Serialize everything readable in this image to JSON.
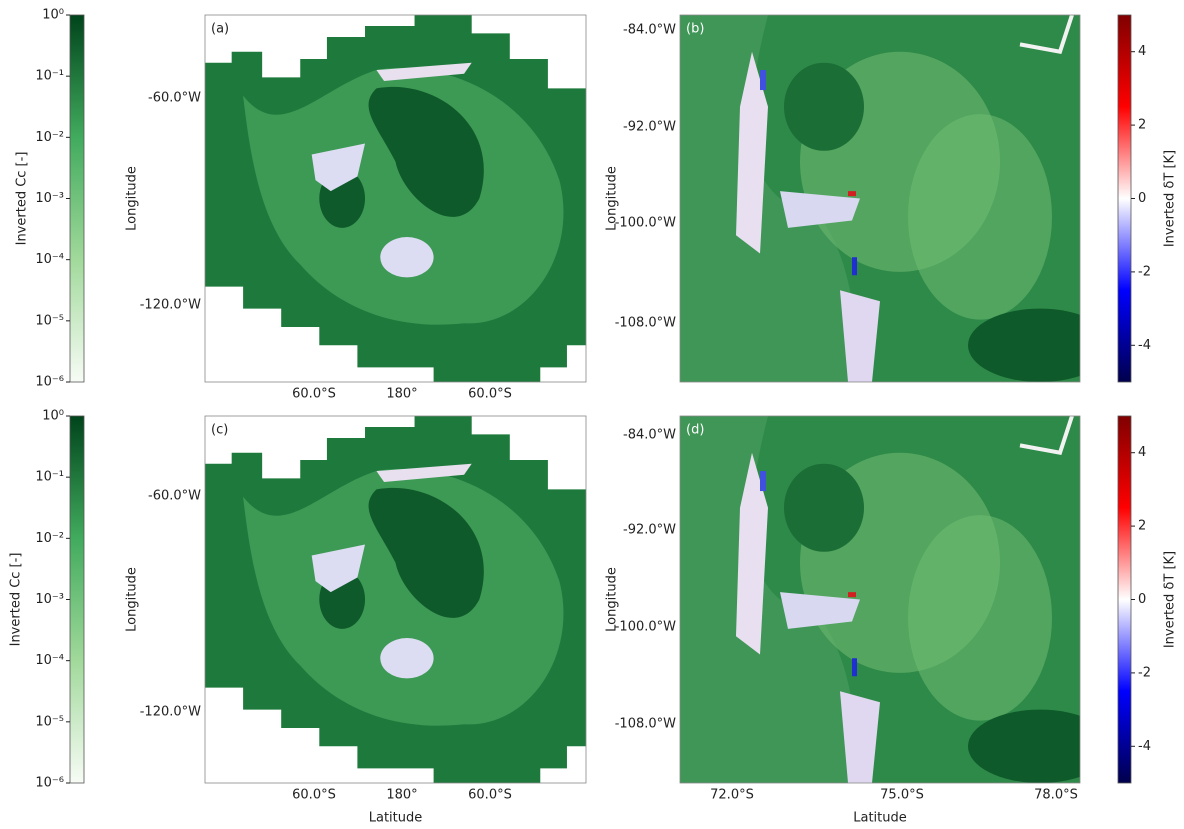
{
  "panels": [
    {
      "label": "(a)",
      "y_axis_label": "Longitude",
      "y_ticks": [
        "-60.0°W",
        "-120.0°W"
      ],
      "x_ticks": [
        "60.0°S",
        "180°",
        "60.0°S"
      ]
    },
    {
      "label": "(b)",
      "y_axis_label": "Longitude",
      "y_ticks": [
        "-84.0°W",
        "-92.0°W",
        "-100.0°W",
        "-108.0°W"
      ]
    },
    {
      "label": "(c)",
      "y_axis_label": "Longitude",
      "y_ticks": [
        "-60.0°W",
        "-120.0°W"
      ],
      "x_ticks": [
        "60.0°S",
        "180°",
        "60.0°S"
      ],
      "x_axis_label": "Latitude"
    },
    {
      "label": "(d)",
      "y_axis_label": "Longitude",
      "y_ticks": [
        "-84.0°W",
        "-92.0°W",
        "-100.0°W",
        "-108.0°W"
      ],
      "x_ticks": [
        "72.0°S",
        "75.0°S",
        "78.0°S"
      ],
      "x_axis_label": "Latitude"
    }
  ],
  "colorbars": [
    {
      "label": "Inverted Cc [-]",
      "scale": "log",
      "lim": [
        1e-06,
        1
      ],
      "colors": [
        "#f7fcf5",
        "#a1d99b",
        "#41ab5d",
        "#00441b"
      ],
      "ticks": [
        {
          "value": 1,
          "label": "10⁰"
        },
        {
          "value": 0.1,
          "label": "10⁻¹"
        },
        {
          "value": 0.01,
          "label": "10⁻²"
        },
        {
          "value": 0.001,
          "label": "10⁻³"
        },
        {
          "value": 0.0001,
          "label": "10⁻⁴"
        },
        {
          "value": 1e-05,
          "label": "10⁻⁵"
        },
        {
          "value": 1e-06,
          "label": "10⁻⁶"
        }
      ]
    },
    {
      "label": "Inverted δT [K]",
      "scale": "linear",
      "lim": [
        -5,
        5
      ],
      "colors": [
        "#00004c",
        "#0000ff",
        "#ffffff",
        "#ff0000",
        "#800000"
      ],
      "ticks": [
        4,
        2,
        0,
        -2,
        -4
      ]
    },
    {
      "label": "Inverted Cc [-]",
      "scale": "log",
      "lim": [
        1e-06,
        1
      ],
      "colors": [
        "#f7fcf5",
        "#a1d99b",
        "#41ab5d",
        "#00441b"
      ],
      "ticks": [
        {
          "value": 1,
          "label": "10⁰"
        },
        {
          "value": 0.1,
          "label": "10⁻¹"
        },
        {
          "value": 0.01,
          "label": "10⁻²"
        },
        {
          "value": 0.001,
          "label": "10⁻³"
        },
        {
          "value": 0.0001,
          "label": "10⁻⁴"
        },
        {
          "value": 1e-05,
          "label": "10⁻⁵"
        },
        {
          "value": 1e-06,
          "label": "10⁻⁶"
        }
      ]
    },
    {
      "label": "Inverted δT [K]",
      "scale": "linear",
      "lim": [
        -5,
        5
      ],
      "colors": [
        "#00004c",
        "#0000ff",
        "#ffffff",
        "#ff0000",
        "#800000"
      ],
      "ticks": [
        4,
        2,
        0,
        -2,
        -4
      ]
    }
  ]
}
